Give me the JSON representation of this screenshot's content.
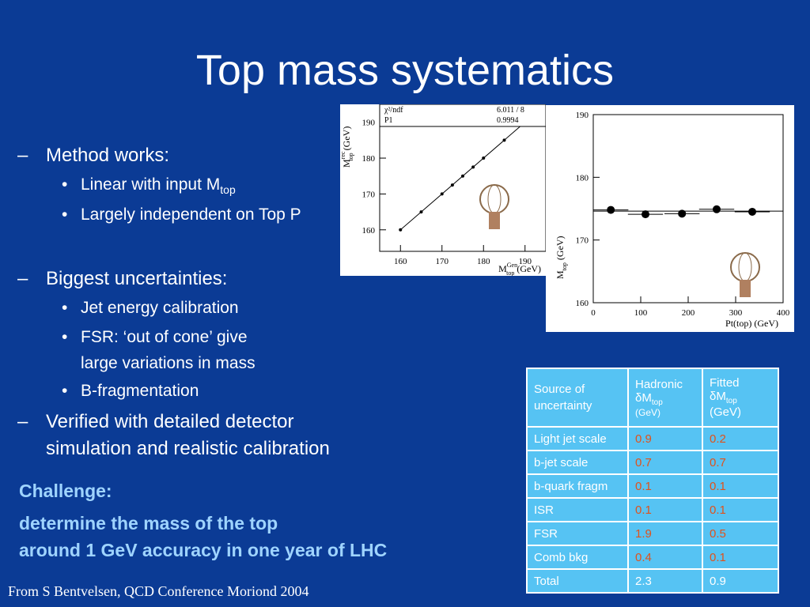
{
  "title": "Top mass systematics",
  "bullets": [
    {
      "text": "Method works:",
      "items": [
        {
          "text": "Linear with input M",
          "sub": "top"
        },
        {
          "text": "Largely independent on Top P"
        }
      ]
    },
    {
      "text": "Biggest uncertainties:",
      "items": [
        {
          "text": "Jet energy calibration"
        },
        {
          "text": "FSR: ‘out of cone’ give",
          "line2": "large variations in mass"
        },
        {
          "text": "B-fragmentation"
        }
      ]
    },
    {
      "text": "Verified with detailed detector",
      "line2": "simulation and realistic calibration",
      "items": []
    }
  ],
  "challenge": {
    "heading": "Challenge:",
    "line1": "determine the mass of the top",
    "line2": "around 1 GeV accuracy in one year of LHC"
  },
  "footer": "From S Bentvelsen, QCD Conference Moriond 2004",
  "table": {
    "headers": [
      {
        "line1": "Source of",
        "line2": "uncertainty"
      },
      {
        "line1": "Hadronic",
        "sym": "δM",
        "sub": "top",
        "unit": "(GeV)"
      },
      {
        "line1": "Fitted",
        "sym": "δM",
        "sub": "top",
        "unit": "(GeV)"
      }
    ],
    "rows": [
      [
        "Light jet scale",
        "0.9",
        "0.2"
      ],
      [
        "b-jet scale",
        "0.7",
        "0.7"
      ],
      [
        "b-quark fragm",
        "0.1",
        "0.1"
      ],
      [
        "ISR",
        "0.1",
        "0.1"
      ],
      [
        "FSR",
        "1.9",
        "0.5"
      ],
      [
        "Comb bkg",
        "0.4",
        "0.1"
      ],
      [
        "Total",
        "2.3",
        "0.9"
      ]
    ]
  },
  "plots": [
    {
      "type": "scatter",
      "xlabel": "M",
      "xlabel_sup": "Gen",
      "xlabel_sub": "top",
      "xlabel_unit": "(GeV)",
      "ylabel": "M",
      "ylabel_sup": "rec",
      "ylabel_sub": "top",
      "ylabel_unit": "(GeV)",
      "stats": [
        [
          "χ²/ndf",
          "6.011  /  8"
        ],
        [
          "P1",
          "0.9994"
        ]
      ],
      "xlim": [
        155,
        195
      ],
      "ylim": [
        154,
        195
      ],
      "xticks": [
        160,
        170,
        180,
        190
      ],
      "yticks": [
        160,
        170,
        180,
        190
      ],
      "x": [
        160,
        165,
        170,
        172.5,
        175,
        177.5,
        180,
        185,
        190
      ],
      "y": [
        160,
        165,
        170,
        172.5,
        175,
        177.5,
        180,
        185,
        190
      ]
    },
    {
      "type": "scatter",
      "xlabel": "Pt(top) (GeV)",
      "ylabel": "M",
      "ylabel_sub": "top",
      "ylabel_unit": "(GeV)",
      "xlim": [
        0,
        400
      ],
      "ylim": [
        160,
        190
      ],
      "xticks": [
        0,
        100,
        200,
        300,
        400
      ],
      "yticks": [
        160,
        170,
        180,
        190
      ],
      "x": [
        37,
        110,
        187,
        260,
        335
      ],
      "y": [
        174.8,
        174.1,
        174.2,
        174.9,
        174.5
      ],
      "xerr": [
        37,
        37,
        37,
        37,
        37
      ],
      "fit": 174.6
    }
  ]
}
